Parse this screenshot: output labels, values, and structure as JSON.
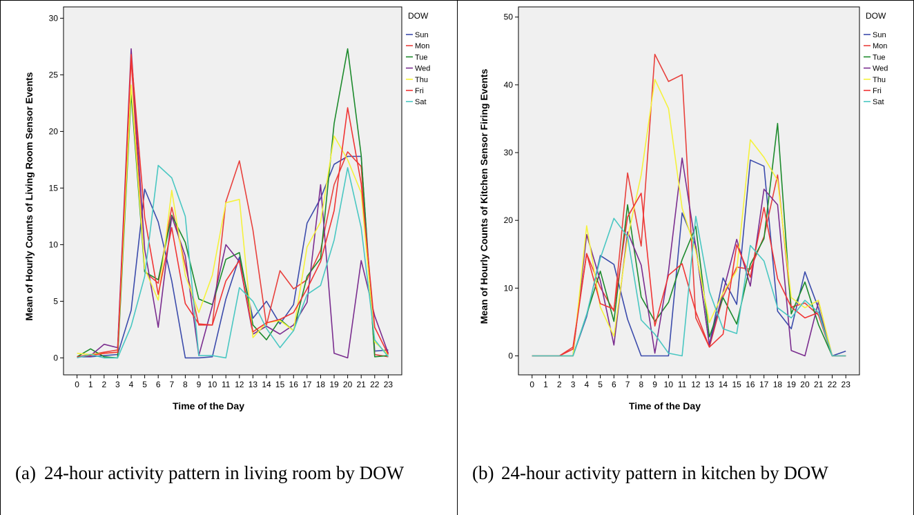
{
  "chart_data": [
    {
      "type": "line",
      "caption_label": "(a)",
      "caption": "24-hour activity pattern in living room by DOW",
      "xlabel": "Time of the Day",
      "ylabel": "Mean of Hourly Counts of Living Room Sensor Events",
      "legend_title": "DOW",
      "legend_position": "top-right",
      "grid": false,
      "ylim": [
        -1.5,
        31
      ],
      "yticks": [
        0,
        5,
        10,
        15,
        20,
        25,
        30
      ],
      "x": [
        0,
        1,
        2,
        3,
        4,
        5,
        6,
        7,
        8,
        9,
        10,
        11,
        12,
        13,
        14,
        15,
        16,
        17,
        18,
        19,
        20,
        21,
        22,
        23
      ],
      "series": [
        {
          "name": "Sun",
          "color": "#3b4bab",
          "values": [
            0.1,
            0.1,
            0.2,
            0.3,
            4.2,
            14.9,
            12.0,
            6.8,
            0,
            0,
            0.1,
            5.2,
            8.9,
            3.5,
            5.0,
            3.0,
            4.7,
            11.9,
            14.1,
            17.1,
            17.8,
            17.8,
            0.6,
            0.7
          ]
        },
        {
          "name": "Mon",
          "color": "#e8403c",
          "values": [
            0.1,
            0.3,
            0.5,
            0.7,
            26.4,
            7.6,
            6.6,
            13.3,
            8.2,
            2.9,
            2.9,
            13.8,
            17.4,
            11.3,
            2.9,
            7.7,
            6.1,
            6.9,
            9.5,
            15.3,
            18.2,
            16.9,
            0.3,
            0.1
          ]
        },
        {
          "name": "Tue",
          "color": "#1c8a2c",
          "values": [
            0.1,
            0.8,
            0.1,
            0.0,
            23.4,
            7.6,
            6.9,
            12.6,
            10.2,
            5.2,
            4.7,
            8.7,
            9.3,
            2.9,
            1.6,
            3.4,
            2.4,
            7.2,
            8.8,
            20.7,
            27.3,
            17.9,
            0.1,
            0.2
          ]
        },
        {
          "name": "Wed",
          "color": "#7a2d8f",
          "values": [
            0.1,
            0.2,
            1.2,
            0.9,
            27.3,
            9.6,
            2.7,
            12.5,
            9.0,
            0.2,
            4.6,
            10.0,
            8.5,
            2.1,
            2.8,
            2.1,
            2.9,
            4.9,
            15.3,
            0.4,
            0.0,
            8.6,
            3.7,
            0.4
          ]
        },
        {
          "name": "Thu",
          "color": "#f5f23c",
          "values": [
            0.4,
            0.3,
            0.4,
            0.5,
            24.1,
            7.9,
            5.1,
            14.8,
            7.3,
            4.0,
            7.3,
            13.7,
            14.0,
            1.8,
            3.1,
            3.3,
            2.4,
            9.8,
            12.0,
            19.6,
            17.5,
            14.6,
            1.4,
            0.3
          ]
        },
        {
          "name": "Fri",
          "color": "#f03434",
          "values": [
            0.1,
            0.2,
            0.4,
            0.5,
            26.8,
            12.4,
            5.6,
            11.5,
            4.8,
            3.0,
            2.9,
            6.8,
            8.6,
            2.3,
            3.1,
            3.4,
            4.0,
            6.1,
            8.5,
            13.0,
            22.1,
            15.4,
            2.7,
            0.3
          ]
        },
        {
          "name": "Sat",
          "color": "#49c7c2",
          "values": [
            0.0,
            0.3,
            0.0,
            0.0,
            2.8,
            7.2,
            17.0,
            15.9,
            12.5,
            0.2,
            0.2,
            0.0,
            6.2,
            5.0,
            2.6,
            0.9,
            2.4,
            5.6,
            6.4,
            10.4,
            16.8,
            11.5,
            1.6,
            0.1
          ]
        }
      ]
    },
    {
      "type": "line",
      "caption_label": "(b)",
      "caption": "24-hour activity pattern in kitchen by DOW",
      "xlabel": "Time of the Day",
      "ylabel": "Mean of Hourly Counts of Kitchen Sensor Firing Events",
      "legend_title": "DOW",
      "legend_position": "top-right",
      "grid": false,
      "ylim": [
        -2.8,
        51.5
      ],
      "yticks": [
        0,
        10,
        20,
        30,
        40,
        50
      ],
      "x": [
        0,
        1,
        2,
        3,
        4,
        5,
        6,
        7,
        8,
        9,
        10,
        11,
        12,
        13,
        14,
        15,
        16,
        17,
        18,
        19,
        20,
        21,
        22,
        23
      ],
      "series": [
        {
          "name": "Sun",
          "color": "#3b4bab",
          "values": [
            0,
            0,
            0,
            0,
            5.8,
            14.8,
            13.5,
            5.4,
            0,
            0,
            0,
            21.1,
            16.2,
            1.6,
            11.5,
            7.6,
            28.9,
            28.0,
            6.6,
            4.0,
            12.4,
            7.0,
            0,
            0.7
          ]
        },
        {
          "name": "Mon",
          "color": "#e8403c",
          "values": [
            0,
            0,
            0,
            1.3,
            15.1,
            10.1,
            6.6,
            27.0,
            16.2,
            44.5,
            40.5,
            41.5,
            5.6,
            1.3,
            8.7,
            13.1,
            12.8,
            17.6,
            26.7,
            7.2,
            7.8,
            6.0,
            0,
            0
          ]
        },
        {
          "name": "Tue",
          "color": "#1c8a2c",
          "values": [
            0,
            0,
            0,
            0,
            6.1,
            12.5,
            5.1,
            22.3,
            8.7,
            5.1,
            7.9,
            14.2,
            19.1,
            2.8,
            8.6,
            4.7,
            13.5,
            17.3,
            34.3,
            6.2,
            10.9,
            4.6,
            0,
            0
          ]
        },
        {
          "name": "Wed",
          "color": "#7a2d8f",
          "values": [
            0,
            0,
            0,
            0,
            17.9,
            11.1,
            1.6,
            18.3,
            13.4,
            0.4,
            12.5,
            29.2,
            16.1,
            1.6,
            9.4,
            17.2,
            10.3,
            24.6,
            22.3,
            0.8,
            0,
            8.0,
            0,
            0
          ]
        },
        {
          "name": "Thu",
          "color": "#f5f23c",
          "values": [
            0,
            0,
            0,
            0,
            19.2,
            7.2,
            2.9,
            17.4,
            26.7,
            40.8,
            36.5,
            21.8,
            15.5,
            4.9,
            9.3,
            12.6,
            31.9,
            29.3,
            25.9,
            8.6,
            7.1,
            8.2,
            0,
            0
          ]
        },
        {
          "name": "Fri",
          "color": "#f03434",
          "values": [
            0,
            0,
            0,
            1.0,
            15.1,
            7.7,
            6.9,
            20.5,
            24.0,
            4.4,
            11.9,
            13.6,
            6.5,
            1.3,
            3.2,
            16.4,
            11.6,
            21.9,
            11.4,
            7.2,
            5.6,
            6.4,
            0,
            0
          ]
        },
        {
          "name": "Sat",
          "color": "#49c7c2",
          "values": [
            0,
            0,
            0,
            0,
            6.1,
            14.4,
            20.3,
            17.6,
            5.3,
            3.2,
            0.4,
            0,
            20.6,
            9.5,
            4.0,
            3.3,
            16.3,
            14.0,
            7.1,
            5.6,
            8.2,
            6.4,
            0,
            0
          ]
        }
      ]
    }
  ]
}
